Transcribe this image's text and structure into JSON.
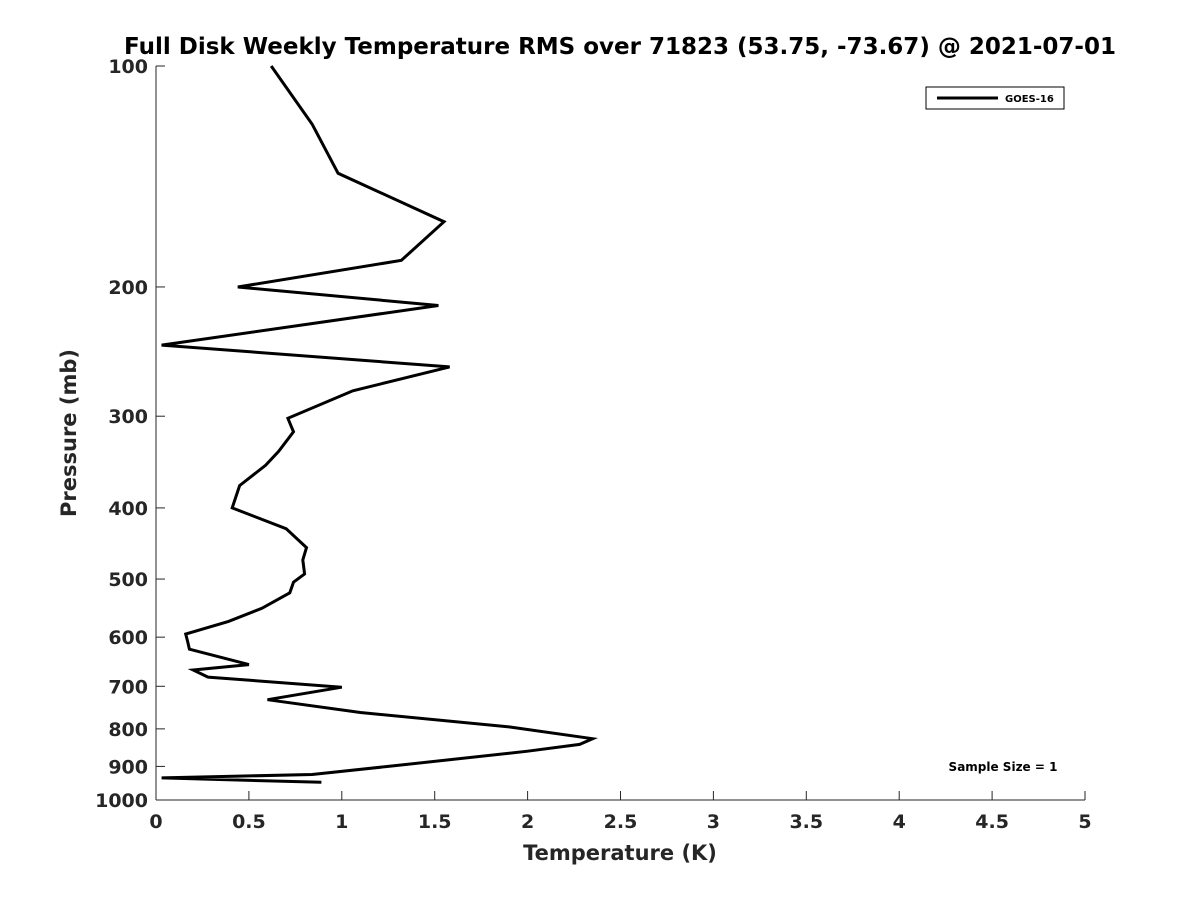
{
  "chart_data": {
    "type": "line",
    "title": "Full Disk Weekly Temperature RMS over 71823 (53.75, -73.67) @ 2021-07-01",
    "xlabel": "Temperature (K)",
    "ylabel": "Pressure (mb)",
    "xlim": [
      0,
      5
    ],
    "ylim": [
      1000,
      100
    ],
    "y_scale": "log",
    "y_reversed": true,
    "x_ticks": [
      "0",
      "0.5",
      "1",
      "1.5",
      "2",
      "2.5",
      "3",
      "3.5",
      "4",
      "4.5",
      "5"
    ],
    "y_ticks": [
      "100",
      "200",
      "300",
      "400",
      "500",
      "600",
      "700",
      "800",
      "900",
      "1000"
    ],
    "grid": false,
    "legend_position": "top-right",
    "line_color": "#000000",
    "series": [
      {
        "name": "GOES-16",
        "x": [
          0.62,
          0.84,
          0.98,
          1.55,
          1.32,
          0.44,
          1.52,
          0.03,
          1.58,
          1.06,
          0.71,
          0.74,
          0.66,
          0.59,
          0.45,
          0.41,
          0.7,
          0.81,
          0.79,
          0.8,
          0.74,
          0.72,
          0.57,
          0.39,
          0.16,
          0.17,
          0.18,
          0.5,
          0.2,
          0.28,
          1.0,
          0.6,
          1.1,
          1.9,
          2.35,
          2.28,
          2.0,
          1.25,
          0.84,
          0.03,
          0.89
        ],
        "y": [
          100,
          120,
          140,
          163,
          184,
          200,
          212,
          240,
          257,
          277,
          302,
          315,
          335,
          350,
          373,
          400,
          427,
          453,
          471,
          492,
          505,
          522,
          548,
          571,
          594,
          608,
          623,
          654,
          665,
          680,
          702,
          730,
          760,
          795,
          825,
          840,
          858,
          900,
          923,
          933,
          946
        ]
      }
    ],
    "annotation": "Sample Size = 1"
  }
}
